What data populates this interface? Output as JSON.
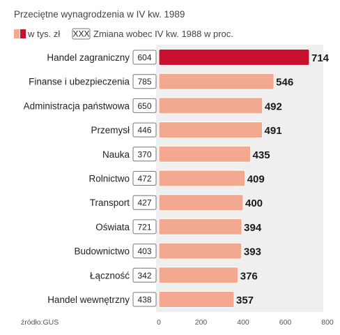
{
  "colors": {
    "bar": "#f2a98f",
    "bar_highlight": "#c8102e",
    "panel": "#efefef",
    "box_border": "#777777"
  },
  "chart_data": {
    "type": "bar",
    "orientation": "horizontal",
    "title": "Przeciętne wynagrodzenia  w IV kw. 1989",
    "legend": {
      "value_label": "w tys. zł",
      "change_box_text": "XXX",
      "change_label": "Zmiana wobec IV kw. 1988 w proc."
    },
    "categories": [
      "Handel zagraniczny",
      "Finanse i ubezpieczenia",
      "Administracja państwowa",
      "Przemysł",
      "Nauka",
      "Rolnictwo",
      "Transport",
      "Oświata",
      "Budownictwo",
      "Łączność",
      "Handel wewnętrzny"
    ],
    "values": [
      714,
      546,
      492,
      491,
      435,
      409,
      400,
      394,
      393,
      376,
      357
    ],
    "change_pct": [
      604,
      785,
      650,
      446,
      370,
      472,
      427,
      721,
      403,
      342,
      438
    ],
    "highlight_index": 0,
    "xlim": [
      0,
      800
    ],
    "xticks": [
      "0",
      "200",
      "400",
      "600",
      "800"
    ],
    "grid": false,
    "source": "źródło:GUS"
  }
}
